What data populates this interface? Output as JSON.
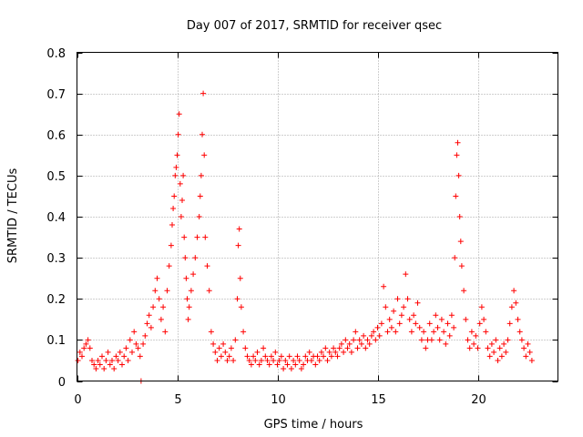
{
  "chart_data": {
    "type": "scatter",
    "title": "Day 007 of 2017, SRMTID for receiver qsec",
    "xlabel": "GPS time / hours",
    "ylabel": "SRMTID / TECUs",
    "xlim": [
      0,
      24
    ],
    "ylim": [
      0,
      0.8
    ],
    "xticks": [
      0,
      5,
      10,
      15,
      20
    ],
    "yticks": [
      0,
      0.1,
      0.2,
      0.3,
      0.4,
      0.5,
      0.6,
      0.7,
      0.8
    ],
    "grid": true,
    "marker": "+",
    "color": "#ff0000",
    "series": [
      {
        "name": "qsec",
        "points": [
          [
            0.05,
            0.05
          ],
          [
            0.15,
            0.07
          ],
          [
            0.25,
            0.06
          ],
          [
            0.35,
            0.08
          ],
          [
            0.45,
            0.09
          ],
          [
            0.55,
            0.1
          ],
          [
            0.65,
            0.08
          ],
          [
            0.75,
            0.05
          ],
          [
            0.85,
            0.04
          ],
          [
            0.95,
            0.03
          ],
          [
            1.05,
            0.05
          ],
          [
            1.15,
            0.04
          ],
          [
            1.25,
            0.06
          ],
          [
            1.35,
            0.03
          ],
          [
            1.45,
            0.05
          ],
          [
            1.55,
            0.07
          ],
          [
            1.65,
            0.04
          ],
          [
            1.75,
            0.05
          ],
          [
            1.85,
            0.03
          ],
          [
            1.95,
            0.06
          ],
          [
            2.05,
            0.05
          ],
          [
            2.15,
            0.07
          ],
          [
            2.25,
            0.04
          ],
          [
            2.35,
            0.06
          ],
          [
            2.45,
            0.08
          ],
          [
            2.55,
            0.05
          ],
          [
            2.65,
            0.1
          ],
          [
            2.75,
            0.07
          ],
          [
            2.85,
            0.12
          ],
          [
            2.95,
            0.09
          ],
          [
            3.05,
            0.08
          ],
          [
            3.15,
            0.06
          ],
          [
            3.2,
            0.0
          ],
          [
            3.3,
            0.09
          ],
          [
            3.4,
            0.11
          ],
          [
            3.5,
            0.14
          ],
          [
            3.6,
            0.16
          ],
          [
            3.7,
            0.13
          ],
          [
            3.8,
            0.18
          ],
          [
            3.9,
            0.22
          ],
          [
            4.0,
            0.25
          ],
          [
            4.1,
            0.2
          ],
          [
            4.2,
            0.15
          ],
          [
            4.3,
            0.18
          ],
          [
            4.4,
            0.12
          ],
          [
            4.5,
            0.22
          ],
          [
            4.6,
            0.28
          ],
          [
            4.7,
            0.33
          ],
          [
            4.75,
            0.38
          ],
          [
            4.8,
            0.42
          ],
          [
            4.85,
            0.45
          ],
          [
            4.9,
            0.5
          ],
          [
            4.95,
            0.52
          ],
          [
            5.0,
            0.55
          ],
          [
            5.05,
            0.6
          ],
          [
            5.1,
            0.65
          ],
          [
            5.15,
            0.48
          ],
          [
            5.2,
            0.4
          ],
          [
            5.25,
            0.44
          ],
          [
            5.3,
            0.5
          ],
          [
            5.35,
            0.35
          ],
          [
            5.4,
            0.3
          ],
          [
            5.45,
            0.25
          ],
          [
            5.5,
            0.2
          ],
          [
            5.55,
            0.15
          ],
          [
            5.6,
            0.18
          ],
          [
            5.7,
            0.22
          ],
          [
            5.8,
            0.26
          ],
          [
            5.9,
            0.3
          ],
          [
            6.0,
            0.35
          ],
          [
            6.1,
            0.4
          ],
          [
            6.15,
            0.45
          ],
          [
            6.2,
            0.5
          ],
          [
            6.25,
            0.6
          ],
          [
            6.3,
            0.7
          ],
          [
            6.35,
            0.55
          ],
          [
            6.4,
            0.35
          ],
          [
            6.5,
            0.28
          ],
          [
            6.6,
            0.22
          ],
          [
            6.7,
            0.12
          ],
          [
            6.8,
            0.09
          ],
          [
            6.9,
            0.07
          ],
          [
            7.0,
            0.05
          ],
          [
            7.1,
            0.08
          ],
          [
            7.2,
            0.06
          ],
          [
            7.3,
            0.09
          ],
          [
            7.4,
            0.07
          ],
          [
            7.5,
            0.05
          ],
          [
            7.6,
            0.06
          ],
          [
            7.7,
            0.08
          ],
          [
            7.8,
            0.05
          ],
          [
            7.9,
            0.1
          ],
          [
            8.0,
            0.2
          ],
          [
            8.05,
            0.33
          ],
          [
            8.1,
            0.37
          ],
          [
            8.15,
            0.25
          ],
          [
            8.2,
            0.18
          ],
          [
            8.3,
            0.12
          ],
          [
            8.4,
            0.08
          ],
          [
            8.5,
            0.06
          ],
          [
            8.6,
            0.05
          ],
          [
            8.7,
            0.04
          ],
          [
            8.8,
            0.06
          ],
          [
            8.9,
            0.05
          ],
          [
            9.0,
            0.07
          ],
          [
            9.1,
            0.04
          ],
          [
            9.2,
            0.05
          ],
          [
            9.3,
            0.08
          ],
          [
            9.4,
            0.06
          ],
          [
            9.5,
            0.05
          ],
          [
            9.6,
            0.04
          ],
          [
            9.7,
            0.06
          ],
          [
            9.8,
            0.05
          ],
          [
            9.9,
            0.07
          ],
          [
            10.0,
            0.04
          ],
          [
            10.1,
            0.05
          ],
          [
            10.2,
            0.06
          ],
          [
            10.3,
            0.03
          ],
          [
            10.4,
            0.05
          ],
          [
            10.5,
            0.04
          ],
          [
            10.6,
            0.06
          ],
          [
            10.7,
            0.03
          ],
          [
            10.8,
            0.05
          ],
          [
            10.9,
            0.04
          ],
          [
            11.0,
            0.06
          ],
          [
            11.1,
            0.05
          ],
          [
            11.2,
            0.03
          ],
          [
            11.3,
            0.04
          ],
          [
            11.4,
            0.06
          ],
          [
            11.5,
            0.05
          ],
          [
            11.6,
            0.07
          ],
          [
            11.7,
            0.05
          ],
          [
            11.8,
            0.06
          ],
          [
            11.9,
            0.04
          ],
          [
            12.0,
            0.06
          ],
          [
            12.1,
            0.05
          ],
          [
            12.2,
            0.07
          ],
          [
            12.3,
            0.06
          ],
          [
            12.4,
            0.08
          ],
          [
            12.5,
            0.05
          ],
          [
            12.6,
            0.07
          ],
          [
            12.7,
            0.06
          ],
          [
            12.8,
            0.08
          ],
          [
            12.9,
            0.07
          ],
          [
            13.0,
            0.06
          ],
          [
            13.1,
            0.08
          ],
          [
            13.2,
            0.09
          ],
          [
            13.3,
            0.07
          ],
          [
            13.4,
            0.1
          ],
          [
            13.5,
            0.08
          ],
          [
            13.6,
            0.09
          ],
          [
            13.7,
            0.07
          ],
          [
            13.8,
            0.1
          ],
          [
            13.9,
            0.12
          ],
          [
            14.0,
            0.08
          ],
          [
            14.1,
            0.1
          ],
          [
            14.2,
            0.09
          ],
          [
            14.3,
            0.11
          ],
          [
            14.4,
            0.08
          ],
          [
            14.5,
            0.1
          ],
          [
            14.6,
            0.09
          ],
          [
            14.7,
            0.11
          ],
          [
            14.8,
            0.12
          ],
          [
            14.9,
            0.1
          ],
          [
            15.0,
            0.13
          ],
          [
            15.1,
            0.11
          ],
          [
            15.2,
            0.14
          ],
          [
            15.3,
            0.23
          ],
          [
            15.4,
            0.18
          ],
          [
            15.5,
            0.12
          ],
          [
            15.6,
            0.15
          ],
          [
            15.7,
            0.13
          ],
          [
            15.8,
            0.17
          ],
          [
            15.9,
            0.12
          ],
          [
            16.0,
            0.2
          ],
          [
            16.1,
            0.14
          ],
          [
            16.2,
            0.16
          ],
          [
            16.3,
            0.18
          ],
          [
            16.4,
            0.26
          ],
          [
            16.5,
            0.2
          ],
          [
            16.6,
            0.15
          ],
          [
            16.7,
            0.12
          ],
          [
            16.8,
            0.16
          ],
          [
            16.9,
            0.14
          ],
          [
            17.0,
            0.19
          ],
          [
            17.1,
            0.13
          ],
          [
            17.2,
            0.1
          ],
          [
            17.3,
            0.12
          ],
          [
            17.4,
            0.08
          ],
          [
            17.5,
            0.1
          ],
          [
            17.6,
            0.14
          ],
          [
            17.7,
            0.1
          ],
          [
            17.8,
            0.12
          ],
          [
            17.9,
            0.16
          ],
          [
            18.0,
            0.13
          ],
          [
            18.1,
            0.1
          ],
          [
            18.2,
            0.15
          ],
          [
            18.3,
            0.12
          ],
          [
            18.4,
            0.09
          ],
          [
            18.5,
            0.14
          ],
          [
            18.6,
            0.11
          ],
          [
            18.7,
            0.16
          ],
          [
            18.8,
            0.13
          ],
          [
            18.85,
            0.3
          ],
          [
            18.9,
            0.45
          ],
          [
            18.95,
            0.55
          ],
          [
            19.0,
            0.58
          ],
          [
            19.05,
            0.5
          ],
          [
            19.1,
            0.4
          ],
          [
            19.15,
            0.34
          ],
          [
            19.2,
            0.28
          ],
          [
            19.3,
            0.22
          ],
          [
            19.4,
            0.15
          ],
          [
            19.5,
            0.1
          ],
          [
            19.6,
            0.08
          ],
          [
            19.7,
            0.12
          ],
          [
            19.8,
            0.09
          ],
          [
            19.9,
            0.11
          ],
          [
            20.0,
            0.08
          ],
          [
            20.1,
            0.14
          ],
          [
            20.2,
            0.18
          ],
          [
            20.3,
            0.15
          ],
          [
            20.4,
            0.12
          ],
          [
            20.5,
            0.08
          ],
          [
            20.6,
            0.06
          ],
          [
            20.7,
            0.09
          ],
          [
            20.8,
            0.07
          ],
          [
            20.9,
            0.1
          ],
          [
            21.0,
            0.05
          ],
          [
            21.1,
            0.08
          ],
          [
            21.2,
            0.06
          ],
          [
            21.3,
            0.09
          ],
          [
            21.4,
            0.07
          ],
          [
            21.5,
            0.1
          ],
          [
            21.6,
            0.14
          ],
          [
            21.7,
            0.18
          ],
          [
            21.8,
            0.22
          ],
          [
            21.9,
            0.19
          ],
          [
            22.0,
            0.15
          ],
          [
            22.1,
            0.12
          ],
          [
            22.2,
            0.1
          ],
          [
            22.3,
            0.08
          ],
          [
            22.4,
            0.06
          ],
          [
            22.5,
            0.09
          ],
          [
            22.6,
            0.07
          ],
          [
            22.7,
            0.05
          ]
        ]
      }
    ]
  }
}
